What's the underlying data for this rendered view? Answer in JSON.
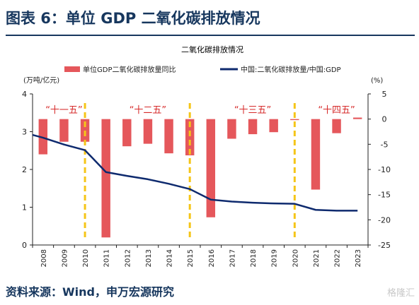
{
  "figure_title": "图表 6：单位 GDP 二氧化碳排放情况",
  "source": "资料来源：Wind，申万宏源研究",
  "watermark": "格隆汇",
  "colors": {
    "bar": "#e5575b",
    "line": "#0e2a6e",
    "divider": "#f5c518",
    "period_label": "#d62a2a",
    "title": "#17375e"
  },
  "chart_data": {
    "type": "bar+line",
    "title": "二氧化碳排放情况",
    "categories": [
      "2008",
      "2009",
      "2010",
      "2011",
      "2012",
      "2013",
      "2014",
      "2015",
      "2016",
      "2017",
      "2018",
      "2019",
      "2020",
      "2021",
      "2022",
      "2023"
    ],
    "series": [
      {
        "name": "单位GDP二氧化碳排放量同比",
        "type": "bar",
        "axis": "right",
        "values": [
          -7.0,
          -4.5,
          -4.5,
          -23.5,
          -5.4,
          -4.9,
          -6.8,
          -7.2,
          -19.5,
          -3.9,
          -3.0,
          -2.6,
          -0.2,
          -14.0,
          -2.8,
          0.3
        ]
      },
      {
        "name": "中国:二氧化碳排放量/中国:GDP",
        "type": "line",
        "axis": "left",
        "values": [
          2.84,
          2.66,
          2.51,
          1.93,
          1.83,
          1.74,
          1.62,
          1.48,
          1.2,
          1.15,
          1.12,
          1.1,
          1.09,
          0.93,
          0.91,
          0.91
        ]
      }
    ],
    "left_axis": {
      "label": "(万吨/亿元)",
      "ylim": [
        0,
        4
      ],
      "ticks": [
        "0",
        "1",
        "2",
        "3",
        "4"
      ]
    },
    "right_axis": {
      "label": "(%)",
      "ylim": [
        -25,
        5
      ],
      "ticks": [
        "5",
        "0",
        "-5",
        "-10",
        "-15",
        "-20",
        "-25"
      ]
    },
    "legend_position": "top",
    "periods": [
      {
        "label": "“十一五”",
        "from": "2008",
        "to": "2010"
      },
      {
        "label": "“十二五”",
        "from": "2011",
        "to": "2015"
      },
      {
        "label": "“十三五”",
        "from": "2016",
        "to": "2020"
      },
      {
        "label": "“十四五”",
        "from": "2021",
        "to": "2023"
      }
    ],
    "dividers_after": [
      "2010",
      "2015",
      "2020"
    ]
  }
}
